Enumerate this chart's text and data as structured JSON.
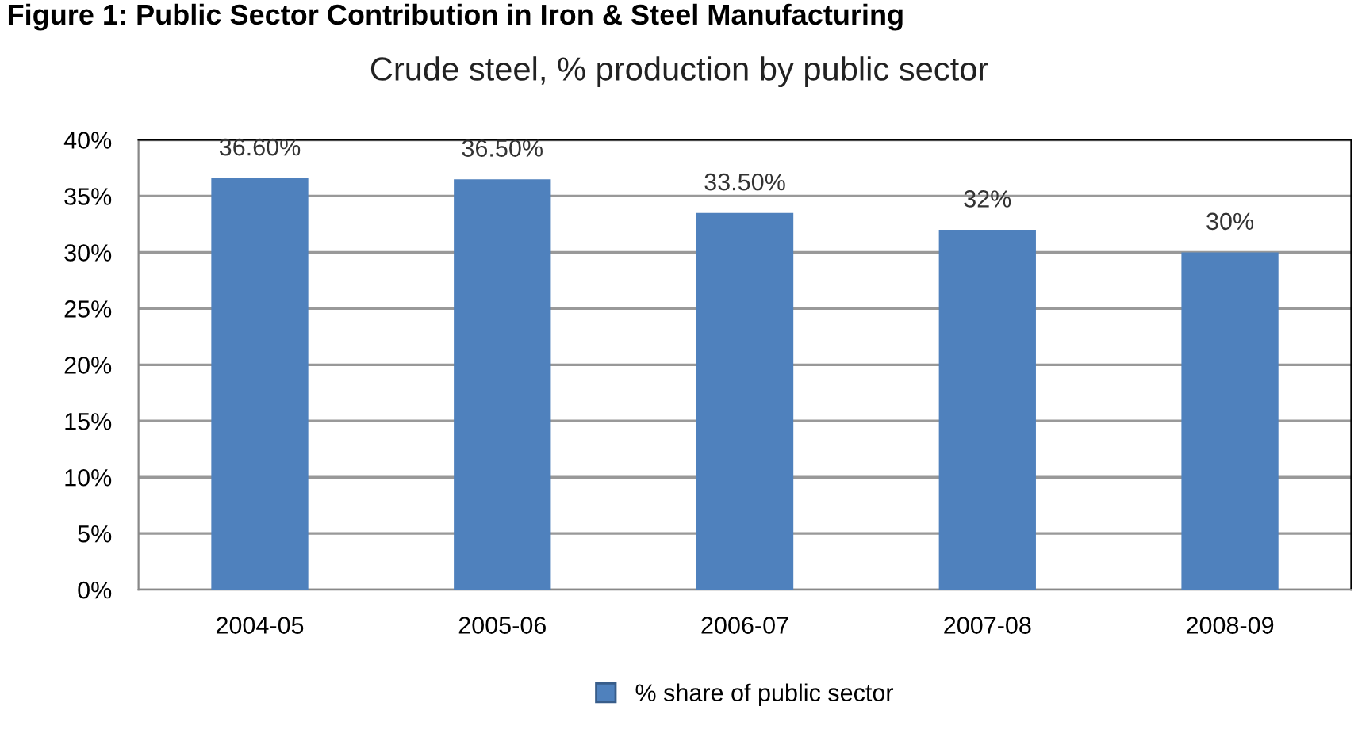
{
  "chart_data": {
    "type": "bar",
    "title": "Crude steel, % production by public sector",
    "annotations": [
      "Figure 1: Public Sector Contribution in Iron & Steel Manufacturing"
    ],
    "categories": [
      "2004-05",
      "2005-06",
      "2006-07",
      "2007-08",
      "2008-09"
    ],
    "series": [
      {
        "name": "% share of public sector",
        "color": "#4f81bd",
        "values": [
          36.6,
          36.5,
          33.5,
          32,
          30
        ],
        "value_labels": [
          "36.60%",
          "36.50%",
          "33.50%",
          "32%",
          "30%"
        ]
      }
    ],
    "ylim": [
      0,
      40
    ],
    "yticks": [
      {
        "value": 0,
        "label": "0%"
      },
      {
        "value": 5,
        "label": "5%"
      },
      {
        "value": 10,
        "label": "10%"
      },
      {
        "value": 15,
        "label": "15%"
      },
      {
        "value": 20,
        "label": "20%"
      },
      {
        "value": 25,
        "label": "25%"
      },
      {
        "value": 30,
        "label": "30%"
      },
      {
        "value": 35,
        "label": "35%"
      },
      {
        "value": 40,
        "label": "40%"
      }
    ],
    "grid": "y",
    "legend": "bottom"
  }
}
